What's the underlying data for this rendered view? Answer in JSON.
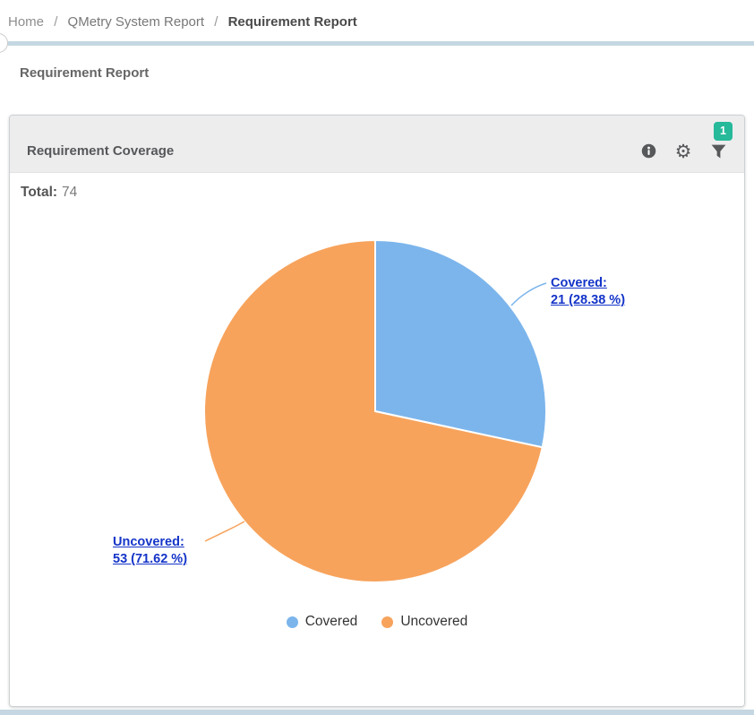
{
  "breadcrumb": {
    "separator": "/",
    "items": [
      "Home",
      "QMetry System Report",
      "Requirement Report"
    ]
  },
  "page": {
    "title": "Requirement Report"
  },
  "panel": {
    "title": "Requirement Coverage",
    "badge_count": "1",
    "total_label": "Total:",
    "total_value": "74"
  },
  "chart_data": {
    "type": "pie",
    "title": "Requirement Coverage",
    "total": 74,
    "slices": [
      {
        "name": "Covered",
        "value": 21,
        "percent": 28.38,
        "color": "#7cb5ec",
        "label_line1": "Covered:",
        "label_line2": "21 (28.38 %)"
      },
      {
        "name": "Uncovered",
        "value": 53,
        "percent": 71.62,
        "color": "#f7a35c",
        "label_line1": "Uncovered:",
        "label_line2": "53 (71.62 %)"
      }
    ],
    "legend": {
      "position": "bottom",
      "entries": [
        "Covered",
        "Uncovered"
      ]
    },
    "start_angle": 0,
    "direction": "clockwise"
  },
  "colors": {
    "slice_covered": "#7cb5ec",
    "slice_uncovered": "#f7a35c",
    "badge_green": "#26b99a",
    "data_label_link": "#1434c8",
    "divider_blue": "#c4d7e2"
  }
}
